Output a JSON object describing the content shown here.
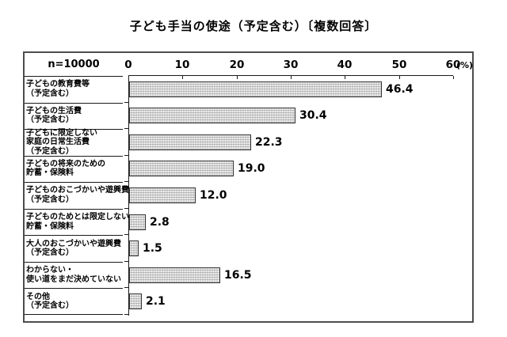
{
  "chart_data": {
    "type": "bar",
    "orientation": "horizontal",
    "title": "子ども手当の使途（予定含む）〔複数回答〕",
    "sample_size_label": "n=10000",
    "axis_unit_label": "(%)",
    "xlim": [
      0,
      60
    ],
    "xticks": [
      0,
      10,
      20,
      30,
      40,
      50,
      60
    ],
    "xtick_labels": [
      "0",
      "10",
      "20",
      "30",
      "40",
      "50",
      "60"
    ],
    "grid": false,
    "legend": "none",
    "bar_style": "dotted-gray-pattern",
    "categories": [
      "子どもの教育費等\n（予定含む）",
      "子どもの生活費\n（予定含む）",
      "子どもに限定しない\n家庭の日常生活費\n（予定含む）",
      "子どもの将来のための\n貯蓄・保険料",
      "子どものおこづかいや遊興費\n（予定含む）",
      "子どものためとは限定しない\n貯蓄・保険料",
      "大人のおこづかいや遊興費\n（予定含む）",
      "わからない・\n使い道をまだ決めていない",
      "その他\n（予定含む）"
    ],
    "values": [
      46.4,
      30.4,
      22.3,
      19.0,
      12.0,
      2.8,
      1.5,
      16.5,
      2.1
    ],
    "value_labels": [
      "46.4",
      "30.4",
      "22.3",
      "19.0",
      "12.0",
      "2.8",
      "1.5",
      "16.5",
      "2.1"
    ]
  },
  "colors": {
    "background": "#ffffff",
    "text": "#000000",
    "bar_fill": "#d8d8d8",
    "bar_border": "#333333",
    "axis_line": "#1a1a1a",
    "frame_border": "#4d4d4d"
  }
}
